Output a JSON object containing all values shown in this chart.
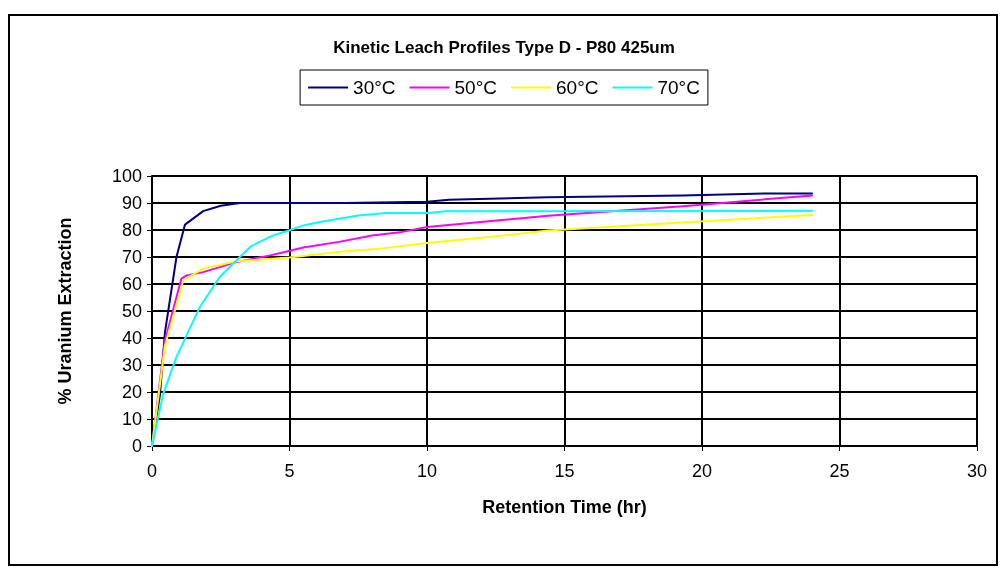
{
  "chart_data": {
    "type": "line",
    "title": "Kinetic Leach Profiles Type D - P80 425um",
    "xlabel": "Retention Time (hr)",
    "ylabel": "% Uranium Extraction",
    "xlim": [
      0,
      30
    ],
    "xticks": [
      0,
      5,
      10,
      15,
      20,
      25,
      30
    ],
    "ylim": [
      0,
      100
    ],
    "yticks": [
      0,
      10,
      20,
      30,
      40,
      50,
      60,
      70,
      80,
      90,
      100
    ],
    "grid": true,
    "legend": "top",
    "marker": "none",
    "line_style": "solid",
    "series": [
      {
        "name": "30°C",
        "color": "#000080",
        "x": [
          0,
          0.29,
          0.47,
          0.89,
          1.2,
          1.86,
          2.5,
          3.2,
          7,
          10,
          10.8,
          14.4,
          19.3,
          22.3,
          24
        ],
        "values": [
          0,
          19,
          42,
          70,
          82,
          87,
          89,
          90,
          90,
          90.5,
          91.2,
          92.1,
          92.8,
          93.5,
          93.5
        ]
      },
      {
        "name": "50°C",
        "color": "#ff00ff",
        "x": [
          0,
          0.47,
          1.07,
          1.26,
          1.86,
          3.07,
          4.3,
          5.5,
          6.8,
          8,
          9.1,
          10,
          12.25,
          14.4,
          19.3,
          24
        ],
        "values": [
          0,
          39,
          62,
          63.2,
          64.4,
          68.1,
          70.6,
          73.5,
          75.6,
          78,
          79.3,
          81.1,
          83.2,
          85.3,
          88.8,
          92.8
        ]
      },
      {
        "name": "60°C",
        "color": "#ffff00",
        "x": [
          0,
          0.47,
          1.14,
          1.86,
          3.07,
          5,
          6.8,
          8.3,
          10,
          12.25,
          14.4,
          19.3,
          24
        ],
        "values": [
          0,
          37,
          61.4,
          65.7,
          68.4,
          69.8,
          71.9,
          73.1,
          75.2,
          77.4,
          79.8,
          82.8,
          85.6
        ]
      },
      {
        "name": "70°C",
        "color": "#00ffff",
        "x": [
          0,
          0.41,
          0.89,
          1.74,
          2.46,
          3.07,
          3.6,
          4.4,
          5,
          5.5,
          6.1,
          7.5,
          8.5,
          10,
          10.7,
          12.25,
          24
        ],
        "values": [
          0,
          19.4,
          33,
          51.5,
          62.6,
          68.8,
          74,
          78,
          79.9,
          81.7,
          83,
          85.4,
          86.3,
          86.3,
          86.9,
          86.9,
          87.1
        ]
      }
    ]
  }
}
